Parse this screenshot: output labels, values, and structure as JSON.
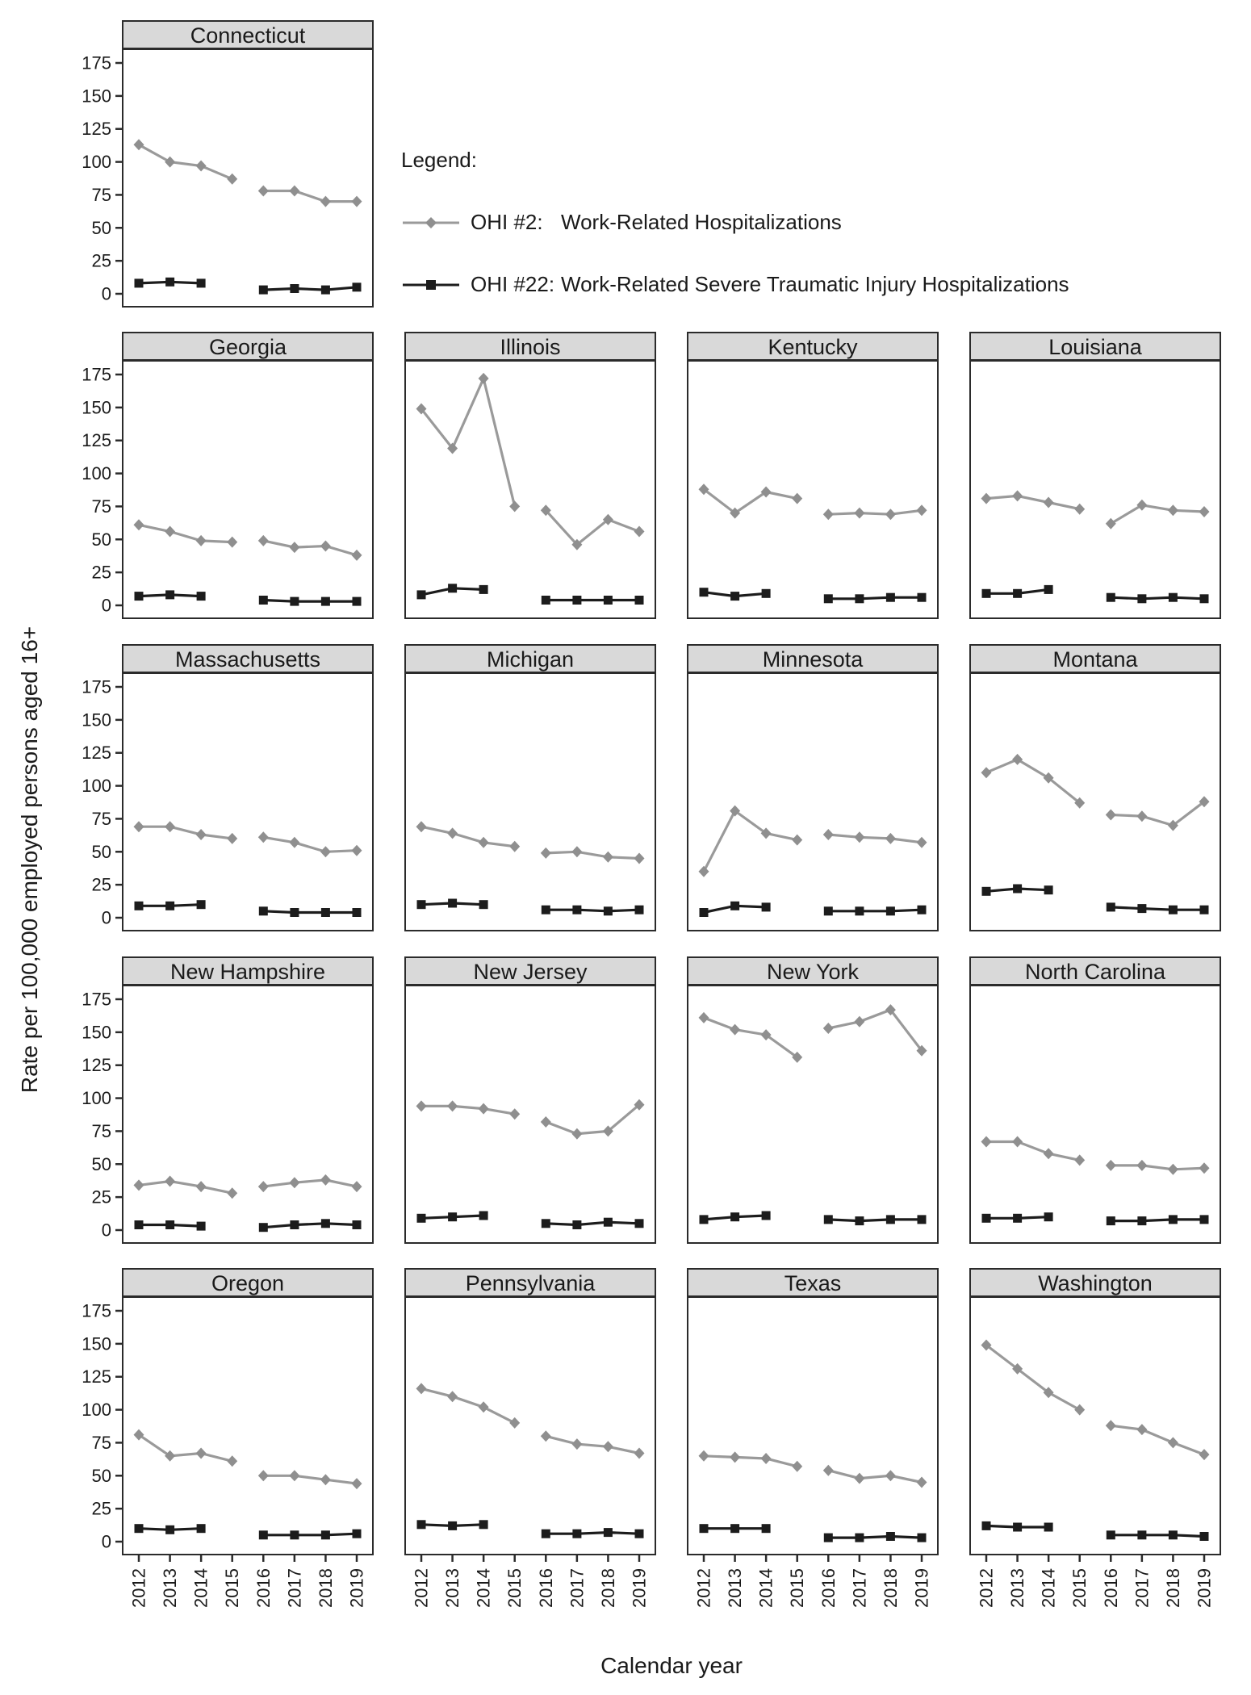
{
  "figure": {
    "y_axis_title": "Rate per 100,000 employed persons aged 16+",
    "x_axis_title": "Calendar year",
    "legend": {
      "heading": "Legend:",
      "entries": [
        {
          "id": "ohi2",
          "prefix": "OHI #2:",
          "label": "Work-Related Hospitalizations"
        },
        {
          "id": "ohi22",
          "prefix": "OHI #22:",
          "label": "Work-Related Severe Traumatic Injury Hospitalizations"
        }
      ]
    },
    "colors": {
      "ohi2_line": "#9a9a9a",
      "ohi2_marker": "#8f8f8f",
      "ohi22_line": "#1c1c1c",
      "ohi22_marker": "#1c1c1c",
      "title_strip": "#d9d9d9",
      "frame": "#2b2b2b"
    }
  },
  "chart_data": {
    "type": "line",
    "x_years": [
      2012,
      2013,
      2014,
      2015,
      2016,
      2017,
      2018,
      2019
    ],
    "y_ticks": [
      0,
      25,
      50,
      75,
      100,
      125,
      150,
      175
    ],
    "ylim": [
      0,
      186
    ],
    "grid": false,
    "layout_note": "5 rows of small multiples; each series is drawn as two disconnected segments with a break between 2015 and 2016; OHI #22 has no 2015 point",
    "series_defs": [
      {
        "id": "ohi2",
        "name": "OHI #2: Work-Related Hospitalizations",
        "marker": "diamond",
        "seg1_years": [
          2012,
          2013,
          2014,
          2015
        ],
        "seg2_years": [
          2016,
          2017,
          2018,
          2019
        ]
      },
      {
        "id": "ohi22",
        "name": "OHI #22: Work-Related Severe Traumatic Injury Hospitalizations",
        "marker": "square",
        "seg1_years": [
          2012,
          2013,
          2014
        ],
        "seg2_years": [
          2016,
          2017,
          2018,
          2019
        ]
      }
    ],
    "panels": [
      {
        "state": "Connecticut",
        "ohi2_2012_2015": [
          113,
          100,
          97,
          87
        ],
        "ohi2_2016_2019": [
          78,
          78,
          70,
          70
        ],
        "ohi22_2012_2014": [
          8,
          9,
          8
        ],
        "ohi22_2016_2019": [
          3,
          4,
          3,
          5
        ]
      },
      {
        "state": "Georgia",
        "ohi2_2012_2015": [
          61,
          56,
          49,
          48
        ],
        "ohi2_2016_2019": [
          49,
          44,
          45,
          38
        ],
        "ohi22_2012_2014": [
          7,
          8,
          7
        ],
        "ohi22_2016_2019": [
          4,
          3,
          3,
          3
        ]
      },
      {
        "state": "Illinois",
        "ohi2_2012_2015": [
          149,
          119,
          172,
          75
        ],
        "ohi2_2016_2019": [
          72,
          46,
          65,
          56
        ],
        "ohi22_2012_2014": [
          8,
          13,
          12
        ],
        "ohi22_2016_2019": [
          4,
          4,
          4,
          4
        ]
      },
      {
        "state": "Kentucky",
        "ohi2_2012_2015": [
          88,
          70,
          86,
          81
        ],
        "ohi2_2016_2019": [
          69,
          70,
          69,
          72
        ],
        "ohi22_2012_2014": [
          10,
          7,
          9
        ],
        "ohi22_2016_2019": [
          5,
          5,
          6,
          6
        ]
      },
      {
        "state": "Louisiana",
        "ohi2_2012_2015": [
          81,
          83,
          78,
          73
        ],
        "ohi2_2016_2019": [
          62,
          76,
          72,
          71
        ],
        "ohi22_2012_2014": [
          9,
          9,
          12
        ],
        "ohi22_2016_2019": [
          6,
          5,
          6,
          5
        ]
      },
      {
        "state": "Massachusetts",
        "ohi2_2012_2015": [
          69,
          69,
          63,
          60
        ],
        "ohi2_2016_2019": [
          61,
          57,
          50,
          51
        ],
        "ohi22_2012_2014": [
          9,
          9,
          10
        ],
        "ohi22_2016_2019": [
          5,
          4,
          4,
          4
        ]
      },
      {
        "state": "Michigan",
        "ohi2_2012_2015": [
          69,
          64,
          57,
          54
        ],
        "ohi2_2016_2019": [
          49,
          50,
          46,
          45
        ],
        "ohi22_2012_2014": [
          10,
          11,
          10
        ],
        "ohi22_2016_2019": [
          6,
          6,
          5,
          6
        ]
      },
      {
        "state": "Minnesota",
        "ohi2_2012_2015": [
          35,
          81,
          64,
          59
        ],
        "ohi2_2016_2019": [
          63,
          61,
          60,
          57
        ],
        "ohi22_2012_2014": [
          4,
          9,
          8
        ],
        "ohi22_2016_2019": [
          5,
          5,
          5,
          6
        ]
      },
      {
        "state": "Montana",
        "ohi2_2012_2015": [
          110,
          120,
          106,
          87
        ],
        "ohi2_2016_2019": [
          78,
          77,
          70,
          88
        ],
        "ohi22_2012_2014": [
          20,
          22,
          21
        ],
        "ohi22_2016_2019": [
          8,
          7,
          6,
          6
        ]
      },
      {
        "state": "New Hampshire",
        "ohi2_2012_2015": [
          34,
          37,
          33,
          28
        ],
        "ohi2_2016_2019": [
          33,
          36,
          38,
          33
        ],
        "ohi22_2012_2014": [
          4,
          4,
          3
        ],
        "ohi22_2016_2019": [
          2,
          4,
          5,
          4
        ]
      },
      {
        "state": "New Jersey",
        "ohi2_2012_2015": [
          94,
          94,
          92,
          88
        ],
        "ohi2_2016_2019": [
          82,
          73,
          75,
          95
        ],
        "ohi22_2012_2014": [
          9,
          10,
          11
        ],
        "ohi22_2016_2019": [
          5,
          4,
          6,
          5
        ]
      },
      {
        "state": "New York",
        "ohi2_2012_2015": [
          161,
          152,
          148,
          131
        ],
        "ohi2_2016_2019": [
          153,
          158,
          167,
          136
        ],
        "ohi22_2012_2014": [
          8,
          10,
          11
        ],
        "ohi22_2016_2019": [
          8,
          7,
          8,
          8
        ]
      },
      {
        "state": "North Carolina",
        "ohi2_2012_2015": [
          67,
          67,
          58,
          53
        ],
        "ohi2_2016_2019": [
          49,
          49,
          46,
          47
        ],
        "ohi22_2012_2014": [
          9,
          9,
          10
        ],
        "ohi22_2016_2019": [
          7,
          7,
          8,
          8
        ]
      },
      {
        "state": "Oregon",
        "ohi2_2012_2015": [
          81,
          65,
          67,
          61
        ],
        "ohi2_2016_2019": [
          50,
          50,
          47,
          44
        ],
        "ohi22_2012_2014": [
          10,
          9,
          10
        ],
        "ohi22_2016_2019": [
          5,
          5,
          5,
          6
        ]
      },
      {
        "state": "Pennsylvania",
        "ohi2_2012_2015": [
          116,
          110,
          102,
          90
        ],
        "ohi2_2016_2019": [
          80,
          74,
          72,
          67
        ],
        "ohi22_2012_2014": [
          13,
          12,
          13
        ],
        "ohi22_2016_2019": [
          6,
          6,
          7,
          6
        ]
      },
      {
        "state": "Texas",
        "ohi2_2012_2015": [
          65,
          64,
          63,
          57
        ],
        "ohi2_2016_2019": [
          54,
          48,
          50,
          45
        ],
        "ohi22_2012_2014": [
          10,
          10,
          10
        ],
        "ohi22_2016_2019": [
          3,
          3,
          4,
          3
        ]
      },
      {
        "state": "Washington",
        "ohi2_2012_2015": [
          149,
          131,
          113,
          100
        ],
        "ohi2_2016_2019": [
          88,
          85,
          75,
          66
        ],
        "ohi22_2012_2014": [
          12,
          11,
          11
        ],
        "ohi22_2016_2019": [
          5,
          5,
          5,
          4
        ]
      }
    ]
  }
}
